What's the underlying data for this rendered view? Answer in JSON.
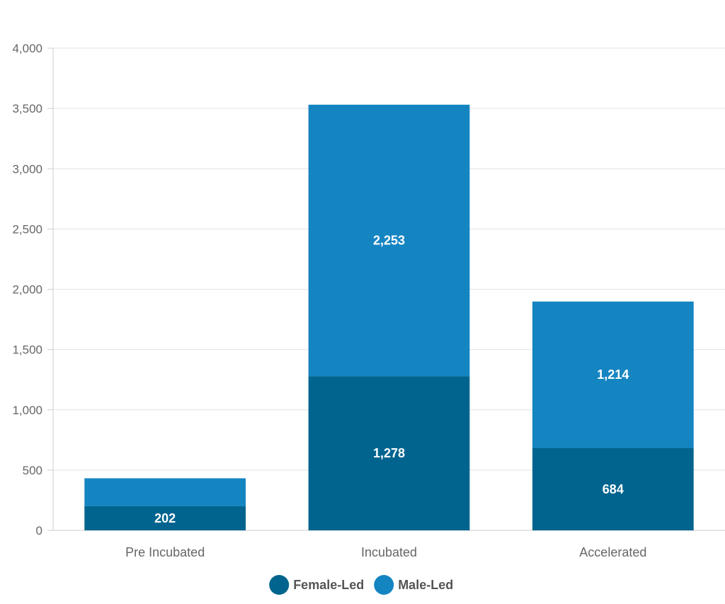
{
  "chart_data": {
    "type": "bar",
    "stacked": true,
    "categories": [
      "Pre Incubated",
      "Incubated",
      "Accelerated"
    ],
    "series": [
      {
        "name": "Female-Led",
        "values": [
          202,
          1278,
          684
        ],
        "color": "#00648f"
      },
      {
        "name": "Male-Led",
        "values": [
          230,
          2253,
          1214
        ],
        "color": "#1585c2"
      }
    ],
    "data_labels": [
      [
        "202",
        "1,278",
        "684"
      ],
      [
        "",
        "2,253",
        "1,214"
      ]
    ],
    "y_ticks": [
      "0",
      "500",
      "1,000",
      "1,500",
      "2,000",
      "2,500",
      "3,000",
      "3,500",
      "4,000"
    ],
    "ylim": [
      0,
      4000
    ],
    "grid": true,
    "legend": "bottom-center",
    "title": "",
    "xlabel": "",
    "ylabel": ""
  }
}
